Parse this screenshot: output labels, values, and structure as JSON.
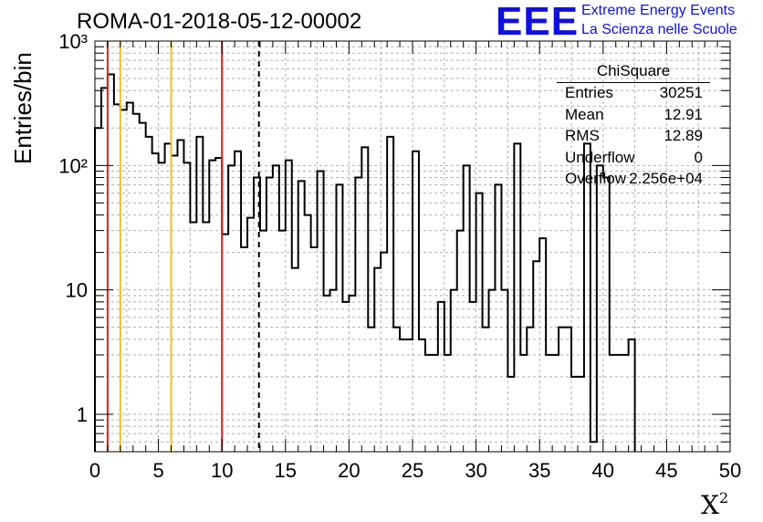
{
  "title": "ROMA-01-2018-05-12-00002",
  "logo": {
    "mark": "EEE",
    "line1": "Extreme Energy Events",
    "line2": "La Scienza nelle Scuole",
    "color": "#1010e0"
  },
  "stats": {
    "header": "ChiSquare",
    "rows": [
      {
        "key": "Entries",
        "value": "30251"
      },
      {
        "key": "Mean",
        "value": "12.91"
      },
      {
        "key": "RMS",
        "value": "12.89"
      },
      {
        "key": "Underflow",
        "value": "0"
      },
      {
        "key": "Overflow",
        "value": "2.256e+04"
      }
    ]
  },
  "chart_data": {
    "type": "histogram",
    "title": "ROMA-01-2018-05-12-00002",
    "xlabel": "X2",
    "ylabel": "Entries/bin",
    "xlim": [
      0,
      50
    ],
    "ylim": [
      0.5,
      1000
    ],
    "yscale": "log",
    "grid": true,
    "bin_width": 0.5,
    "x_ticks": [
      "0",
      "5",
      "10",
      "15",
      "20",
      "25",
      "30",
      "35",
      "40",
      "45",
      "50"
    ],
    "y_ticks": [
      {
        "value": 1,
        "label": "1"
      },
      {
        "value": 10,
        "label": "10"
      },
      {
        "value": 100,
        "label": "10²"
      },
      {
        "value": 1000,
        "label": "10³"
      }
    ],
    "values": [
      200,
      420,
      540,
      310,
      280,
      320,
      260,
      220,
      170,
      125,
      105,
      150,
      120,
      160,
      105,
      35,
      170,
      35,
      110,
      115,
      28,
      100,
      130,
      22,
      38,
      80,
      30,
      80,
      100,
      30,
      110,
      15,
      75,
      40,
      22,
      90,
      9,
      10,
      70,
      8,
      9,
      80,
      140,
      5,
      15,
      20,
      170,
      5,
      4,
      4,
      130,
      4,
      3,
      3,
      8,
      3,
      10,
      30,
      100,
      8,
      60,
      5,
      10,
      70,
      10,
      2,
      150,
      3,
      5,
      17,
      26,
      3,
      3,
      5,
      5,
      2,
      2,
      150,
      0.6,
      100,
      80,
      3,
      3,
      3,
      4
    ],
    "lines": [
      {
        "x": 1,
        "color": "#e02020",
        "style": "solid"
      },
      {
        "x": 2,
        "color": "#f0c020",
        "style": "solid"
      },
      {
        "x": 6,
        "color": "#f0c020",
        "style": "solid"
      },
      {
        "x": 10,
        "color": "#e02020",
        "style": "solid"
      },
      {
        "x": 12.91,
        "color": "#000000",
        "style": "dashed"
      }
    ]
  }
}
